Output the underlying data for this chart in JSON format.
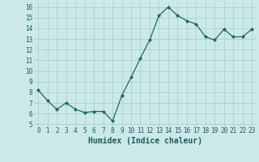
{
  "x": [
    0,
    1,
    2,
    3,
    4,
    5,
    6,
    7,
    8,
    9,
    10,
    11,
    12,
    13,
    14,
    15,
    16,
    17,
    18,
    19,
    20,
    21,
    22,
    23
  ],
  "y": [
    8.2,
    7.2,
    6.4,
    7.0,
    6.4,
    6.1,
    6.2,
    6.2,
    5.3,
    7.7,
    9.4,
    11.2,
    12.9,
    15.2,
    16.0,
    15.2,
    14.7,
    14.4,
    13.2,
    12.9,
    13.9,
    13.2,
    13.2,
    13.9
  ],
  "line_color": "#1a6b5e",
  "marker": "D",
  "marker_size": 2.0,
  "bg_color": "#cce9ea",
  "grid_color": "#9ecfcf",
  "xlabel": "Humidex (Indice chaleur)",
  "xlim": [
    -0.5,
    23.5
  ],
  "ylim": [
    4.8,
    16.5
  ],
  "yticks": [
    5,
    6,
    7,
    8,
    9,
    10,
    11,
    12,
    13,
    14,
    15,
    16
  ],
  "xtick_labels": [
    "0",
    "1",
    "2",
    "3",
    "4",
    "5",
    "6",
    "7",
    "8",
    "9",
    "10",
    "11",
    "12",
    "13",
    "14",
    "15",
    "16",
    "17",
    "18",
    "19",
    "20",
    "21",
    "22",
    "23"
  ],
  "font_color": "#1a5c5c",
  "tick_fontsize": 5.5,
  "label_fontsize": 7.0
}
